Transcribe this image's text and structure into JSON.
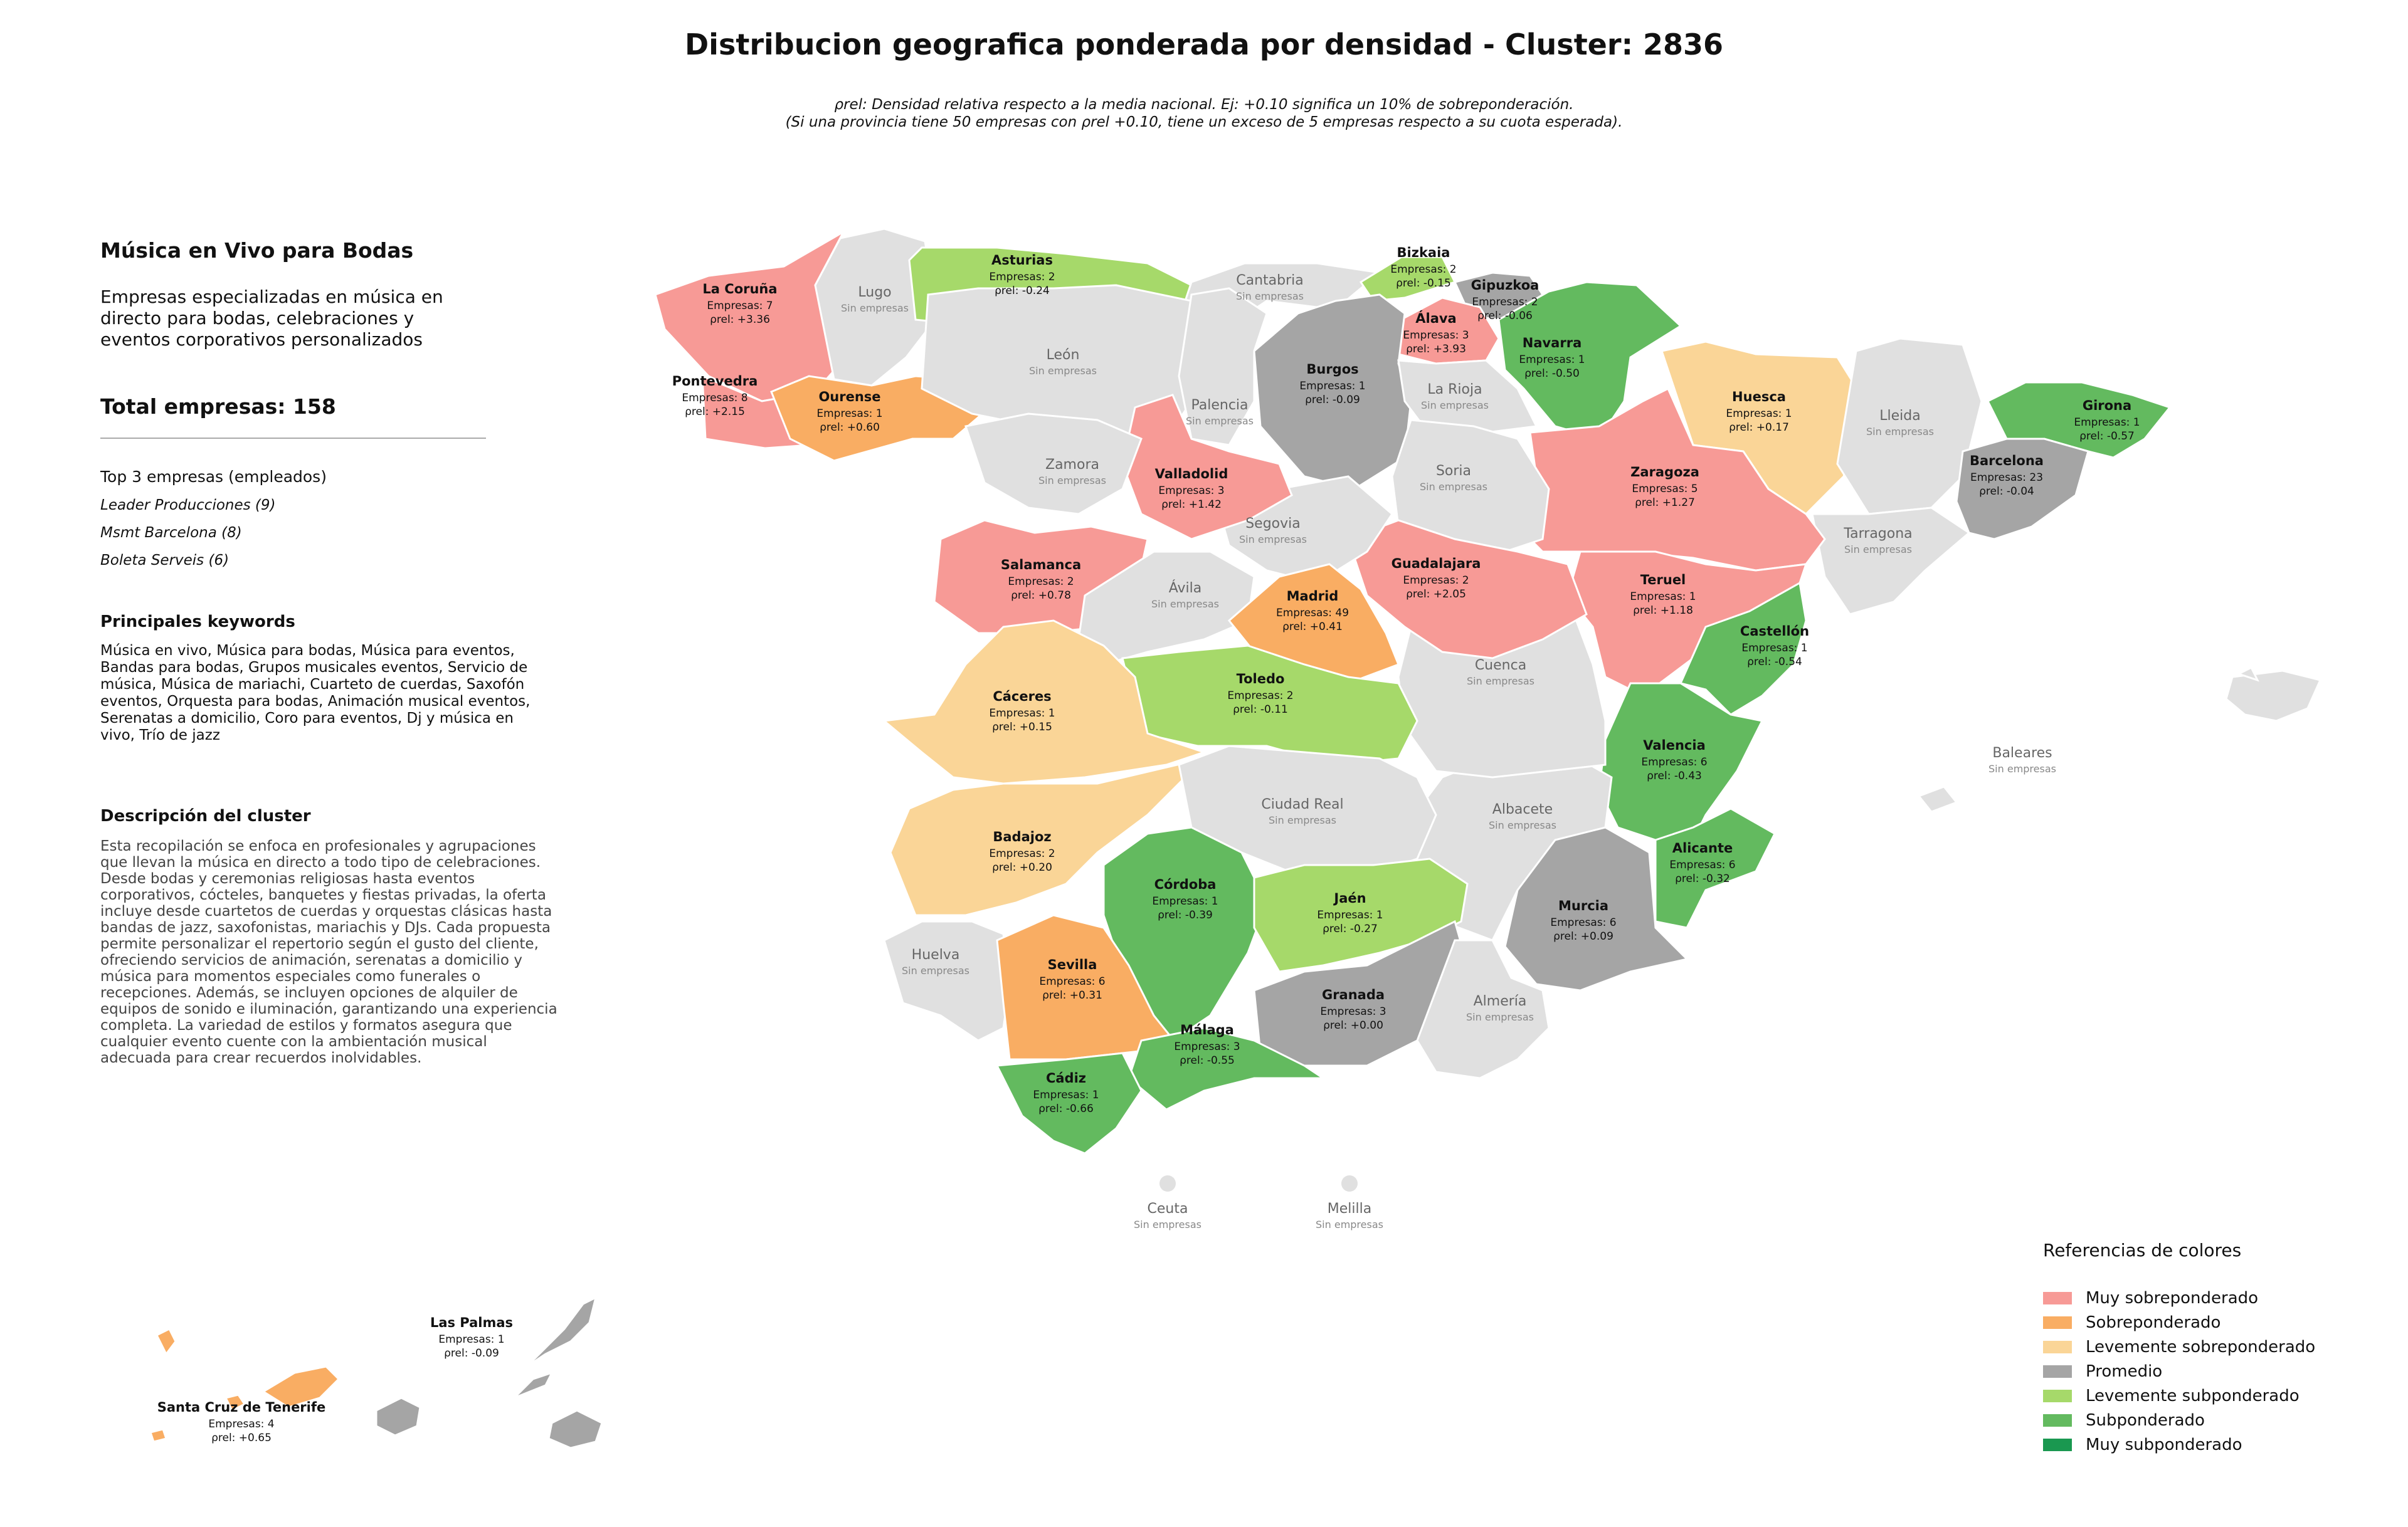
{
  "title": "Distribucion geografica ponderada por densidad - Cluster: 2836",
  "subtitle_line1": "ρrel: Densidad relativa respecto a la media nacional. Ej: +0.10 significa un 10% de sobreponderación.",
  "subtitle_line2": "(Si una provincia tiene 50 empresas con ρrel +0.10, tiene un exceso de 5 empresas respecto a su cuota esperada).",
  "panel": {
    "title": "Música en Vivo para Bodas",
    "description": "Empresas especializadas en música en directo para bodas, celebraciones y eventos corporativos personalizados",
    "total": "Total empresas: 158",
    "top3_title": "Top 3 empresas (empleados)",
    "top3": [
      "Leader Producciones (9)",
      "Msmt Barcelona (8)",
      "Boleta Serveis (6)"
    ],
    "keywords_title": "Principales keywords",
    "keywords": "Música en vivo, Música para bodas, Música para eventos, Bandas para bodas, Grupos musicales eventos, Servicio de música, Música de mariachi, Cuarteto de cuerdas, Saxofón eventos, Orquesta para bodas, Animación musical eventos, Serenatas a domicilio, Coro para eventos, Dj y música en vivo, Trío de jazz",
    "cluster_desc_title": "Descripción del cluster",
    "cluster_desc": "Esta recopilación se enfoca en profesionales y agrupaciones que llevan la música en directo a todo tipo de celebraciones. Desde bodas y ceremonias religiosas hasta eventos corporativos, cócteles, banquetes y fiestas privadas, la oferta incluye desde cuartetos de cuerdas y orquestas clásicas hasta bandas de jazz, saxofonistas, mariachis y DJs. Cada propuesta permite personalizar el repertorio según el gusto del cliente, ofreciendo servicios de animación, serenatas a domicilio y música para momentos especiales como funerales o recepciones. Además, se incluyen opciones de alquiler de equipos de sonido e iluminación, garantizando una experiencia completa. La variedad de estilos y formatos asegura que cualquier evento cuente con la ambientación musical adecuada para crear recuerdos inolvidables."
  },
  "legend": {
    "title": "Referencias de colores",
    "items": [
      {
        "label": "Muy sobreponderado",
        "color": "#f79a96"
      },
      {
        "label": "Sobreponderado",
        "color": "#f9ad63"
      },
      {
        "label": "Levemente sobreponderado",
        "color": "#fad597"
      },
      {
        "label": "Promedio",
        "color": "#a5a5a5"
      },
      {
        "label": "Levemente subponderado",
        "color": "#a6d96a"
      },
      {
        "label": "Subponderado",
        "color": "#63ba5f"
      },
      {
        "label": "Muy subponderado",
        "color": "#1a9850"
      }
    ]
  },
  "no_data_color": "#e0e0e0",
  "sin_empresas": "Sin empresas",
  "provinces": [
    {
      "name": "La Coruña",
      "count": "Empresas: 7",
      "rho": "ρrel: +3.36",
      "category": "Muy sobreponderado"
    },
    {
      "name": "Pontevedra",
      "count": "Empresas: 8",
      "rho": "ρrel: +2.15",
      "category": "Muy sobreponderado"
    },
    {
      "name": "Ourense",
      "count": "Empresas: 1",
      "rho": "ρrel: +0.60",
      "category": "Sobreponderado"
    },
    {
      "name": "Asturias",
      "count": "Empresas: 2",
      "rho": "ρrel: -0.24",
      "category": "Levemente subponderado"
    },
    {
      "name": "Bizkaia",
      "count": "Empresas: 2",
      "rho": "ρrel: -0.15",
      "category": "Levemente subponderado"
    },
    {
      "name": "Gipuzkoa",
      "count": "Empresas: 2",
      "rho": "ρrel: -0.06",
      "category": "Promedio"
    },
    {
      "name": "Álava",
      "count": "Empresas: 3",
      "rho": "ρrel: +3.93",
      "category": "Muy sobreponderado"
    },
    {
      "name": "Navarra",
      "count": "Empresas: 1",
      "rho": "ρrel: -0.50",
      "category": "Subponderado"
    },
    {
      "name": "Burgos",
      "count": "Empresas: 1",
      "rho": "ρrel: -0.09",
      "category": "Promedio"
    },
    {
      "name": "Huesca",
      "count": "Empresas: 1",
      "rho": "ρrel: +0.17",
      "category": "Levemente sobreponderado"
    },
    {
      "name": "Girona",
      "count": "Empresas: 1",
      "rho": "ρrel: -0.57",
      "category": "Subponderado"
    },
    {
      "name": "Barcelona",
      "count": "Empresas: 23",
      "rho": "ρrel: -0.04",
      "category": "Promedio"
    },
    {
      "name": "Zaragoza",
      "count": "Empresas: 5",
      "rho": "ρrel: +1.27",
      "category": "Muy sobreponderado"
    },
    {
      "name": "Valladolid",
      "count": "Empresas: 3",
      "rho": "ρrel: +1.42",
      "category": "Muy sobreponderado"
    },
    {
      "name": "Salamanca",
      "count": "Empresas: 2",
      "rho": "ρrel: +0.78",
      "category": "Muy sobreponderado"
    },
    {
      "name": "Guadalajara",
      "count": "Empresas: 2",
      "rho": "ρrel: +2.05",
      "category": "Muy sobreponderado"
    },
    {
      "name": "Madrid",
      "count": "Empresas: 49",
      "rho": "ρrel: +0.41",
      "category": "Sobreponderado"
    },
    {
      "name": "Teruel",
      "count": "Empresas: 1",
      "rho": "ρrel: +1.18",
      "category": "Muy sobreponderado"
    },
    {
      "name": "Castellón",
      "count": "Empresas: 1",
      "rho": "ρrel: -0.54",
      "category": "Subponderado"
    },
    {
      "name": "Toledo",
      "count": "Empresas: 2",
      "rho": "ρrel: -0.11",
      "category": "Levemente subponderado"
    },
    {
      "name": "Cáceres",
      "count": "Empresas: 1",
      "rho": "ρrel: +0.15",
      "category": "Levemente sobreponderado"
    },
    {
      "name": "Valencia",
      "count": "Empresas: 6",
      "rho": "ρrel: -0.43",
      "category": "Subponderado"
    },
    {
      "name": "Badajoz",
      "count": "Empresas: 2",
      "rho": "ρrel: +0.20",
      "category": "Levemente sobreponderado"
    },
    {
      "name": "Alicante",
      "count": "Empresas: 6",
      "rho": "ρrel: -0.32",
      "category": "Subponderado"
    },
    {
      "name": "Córdoba",
      "count": "Empresas: 1",
      "rho": "ρrel: -0.39",
      "category": "Subponderado"
    },
    {
      "name": "Jaén",
      "count": "Empresas: 1",
      "rho": "ρrel: -0.27",
      "category": "Levemente subponderado"
    },
    {
      "name": "Murcia",
      "count": "Empresas: 6",
      "rho": "ρrel: +0.09",
      "category": "Promedio"
    },
    {
      "name": "Sevilla",
      "count": "Empresas: 6",
      "rho": "ρrel: +0.31",
      "category": "Sobreponderado"
    },
    {
      "name": "Granada",
      "count": "Empresas: 3",
      "rho": "ρrel: +0.00",
      "category": "Promedio"
    },
    {
      "name": "Málaga",
      "count": "Empresas: 3",
      "rho": "ρrel: -0.55",
      "category": "Subponderado"
    },
    {
      "name": "Cádiz",
      "count": "Empresas: 1",
      "rho": "ρrel: -0.66",
      "category": "Subponderado"
    },
    {
      "name": "Las Palmas",
      "count": "Empresas: 1",
      "rho": "ρrel: -0.09",
      "category": "Promedio"
    },
    {
      "name": "Santa Cruz de Tenerife",
      "count": "Empresas: 4",
      "rho": "ρrel: +0.65",
      "category": "Sobreponderado"
    }
  ],
  "empty_provinces": [
    "Lugo",
    "Cantabria",
    "León",
    "Palencia",
    "La Rioja",
    "Zamora",
    "Soria",
    "Lleida",
    "Segovia",
    "Tarragona",
    "Ávila",
    "Cuenca",
    "Baleares",
    "Ciudad Real",
    "Albacete",
    "Huelva",
    "Almería",
    "Ceuta",
    "Melilla"
  ]
}
